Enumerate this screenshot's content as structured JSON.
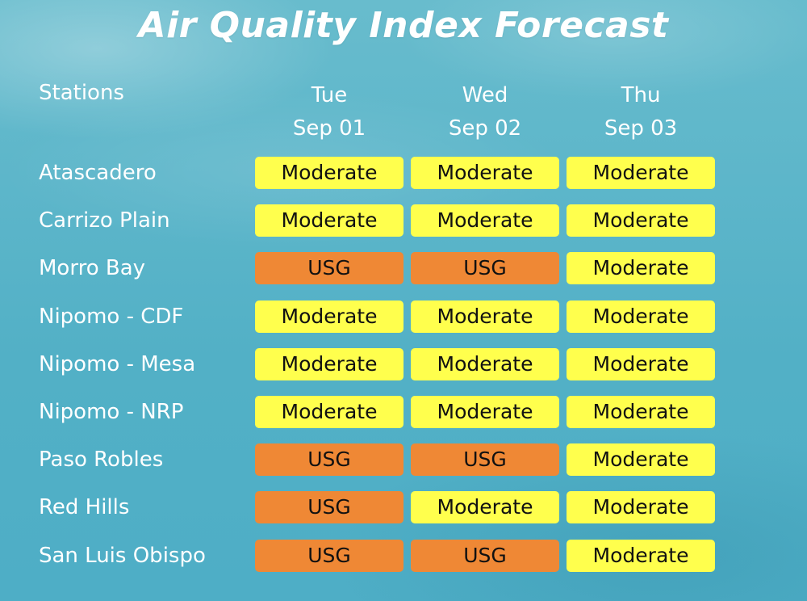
{
  "title": "Air Quality Index Forecast",
  "stations_label": "Stations",
  "days": [
    {
      "dow": "Tue",
      "date": "Sep 01"
    },
    {
      "dow": "Wed",
      "date": "Sep 02"
    },
    {
      "dow": "Thu",
      "date": "Sep 03"
    }
  ],
  "colors": {
    "Moderate": "#ffff4d",
    "USG": "#ef8835"
  },
  "chart_data": {
    "type": "table",
    "title": "Air Quality Index Forecast",
    "columns": [
      "Stations",
      "Tue Sep 01",
      "Wed Sep 02",
      "Thu Sep 03"
    ],
    "rows": [
      {
        "station": "Atascadero",
        "forecast": [
          "Moderate",
          "Moderate",
          "Moderate"
        ]
      },
      {
        "station": "Carrizo Plain",
        "forecast": [
          "Moderate",
          "Moderate",
          "Moderate"
        ]
      },
      {
        "station": "Morro Bay",
        "forecast": [
          "USG",
          "USG",
          "Moderate"
        ]
      },
      {
        "station": "Nipomo - CDF",
        "forecast": [
          "Moderate",
          "Moderate",
          "Moderate"
        ]
      },
      {
        "station": "Nipomo - Mesa",
        "forecast": [
          "Moderate",
          "Moderate",
          "Moderate"
        ]
      },
      {
        "station": "Nipomo - NRP",
        "forecast": [
          "Moderate",
          "Moderate",
          "Moderate"
        ]
      },
      {
        "station": "Paso Robles",
        "forecast": [
          "USG",
          "USG",
          "Moderate"
        ]
      },
      {
        "station": "Red Hills",
        "forecast": [
          "USG",
          "Moderate",
          "Moderate"
        ]
      },
      {
        "station": "San Luis Obispo",
        "forecast": [
          "USG",
          "USG",
          "Moderate"
        ]
      }
    ]
  }
}
